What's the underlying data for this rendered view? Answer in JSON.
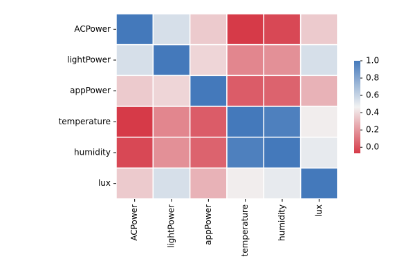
{
  "chart_data": {
    "type": "heatmap",
    "x_categories": [
      "ACPower",
      "lightPower",
      "appPower",
      "temperature",
      "humidity",
      "lux"
    ],
    "y_categories": [
      "ACPower",
      "lightPower",
      "appPower",
      "temperature",
      "humidity",
      "lux"
    ],
    "values": [
      [
        1,
        0.55,
        0.35,
        -0.07,
        -0.03,
        0.35
      ],
      [
        0.55,
        1,
        0.38,
        0.15,
        0.18,
        0.55
      ],
      [
        0.35,
        0.38,
        1,
        0.03,
        0.05,
        0.28
      ],
      [
        -0.07,
        0.15,
        0.03,
        1,
        0.97,
        0.45
      ],
      [
        -0.03,
        0.18,
        0.05,
        0.97,
        1,
        0.5
      ],
      [
        0.35,
        0.55,
        0.28,
        0.45,
        0.5,
        1
      ]
    ],
    "colors": [
      "#d63a48",
      "#f2f2f2",
      "#4479bb"
    ],
    "clim": [
      -0.07,
      1
    ],
    "cticks": [
      {
        "value": 0,
        "label": "0.0"
      },
      0.2,
      0.4,
      0.6,
      0.8,
      {
        "value": 1,
        "label": "1.0"
      }
    ]
  }
}
